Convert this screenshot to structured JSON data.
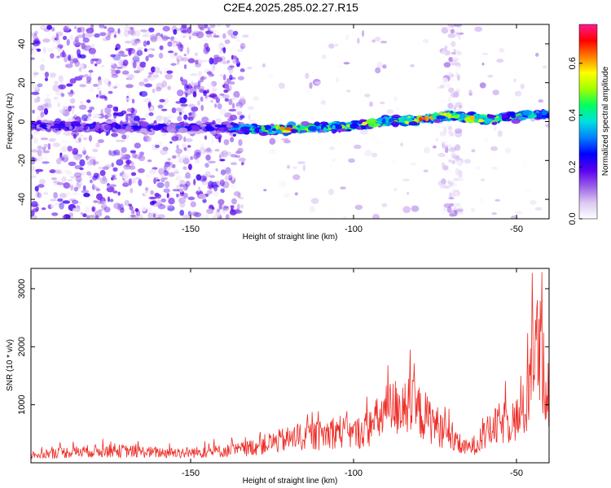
{
  "title": "C2E4.2025.285.02.27.R15",
  "chart_data": [
    {
      "type": "heatmap",
      "xlabel": "Height of straight line (km)",
      "ylabel": "Frequency (Hz)",
      "xlim": [
        -199,
        -40
      ],
      "ylim": [
        -50,
        50
      ],
      "xticks": [
        "-150",
        "-100",
        "-50"
      ],
      "yticks": [
        "40",
        "20",
        "0",
        "-20",
        "-40"
      ],
      "grid": false,
      "colorbar": {
        "label": "Normalized spectral amplitude",
        "range": [
          0.0,
          0.75
        ],
        "ticks": [
          "0.0",
          "0.2",
          "0.4",
          "0.6"
        ],
        "colors": [
          "#ffffff",
          "#dcc8f2",
          "#9b5ee8",
          "#5a00f0",
          "#0000ff",
          "#0080ff",
          "#00e0e0",
          "#00ff60",
          "#a0ff00",
          "#ffff00",
          "#ff8000",
          "#ff0000",
          "#ff1a90"
        ]
      },
      "ridge": {
        "x": [
          -195,
          -180,
          -160,
          -140,
          -130,
          -120,
          -110,
          -100,
          -90,
          -80,
          -70,
          -60,
          -50,
          -41
        ],
        "frequency": [
          -2,
          -3,
          -3,
          -3,
          -4,
          -4,
          -3,
          -2,
          0,
          1,
          3,
          1,
          3,
          4
        ],
        "peak_amplitude": [
          0.28,
          0.3,
          0.3,
          0.3,
          0.55,
          0.75,
          0.55,
          0.6,
          0.65,
          0.72,
          0.7,
          0.72,
          0.55,
          0.45
        ]
      }
    },
    {
      "type": "line",
      "xlabel": "Height of straight line (km)",
      "ylabel": "SNR (10 * v/v)",
      "xlim": [
        -199,
        -40
      ],
      "ylim": [
        0,
        3350
      ],
      "xticks": [
        "-150",
        "-100",
        "-50"
      ],
      "yticks": [
        "3000",
        "2000",
        "1000"
      ],
      "grid": false,
      "line_color": "#ee2a24",
      "series": [
        {
          "x": [
            -199,
            -190,
            -180,
            -170,
            -160,
            -150,
            -140,
            -135,
            -130,
            -125,
            -120,
            -115,
            -110,
            -105,
            -100,
            -95,
            -90,
            -85,
            -80,
            -75,
            -70,
            -67,
            -65,
            -62,
            -60,
            -55,
            -50,
            -47,
            -45,
            -42,
            -40
          ],
          "values": [
            200,
            260,
            300,
            300,
            260,
            260,
            300,
            330,
            420,
            520,
            600,
            680,
            700,
            820,
            720,
            900,
            1300,
            1500,
            1300,
            1000,
            600,
            400,
            380,
            500,
            700,
            1000,
            1100,
            1400,
            3100,
            2600,
            1600
          ]
        }
      ]
    }
  ]
}
